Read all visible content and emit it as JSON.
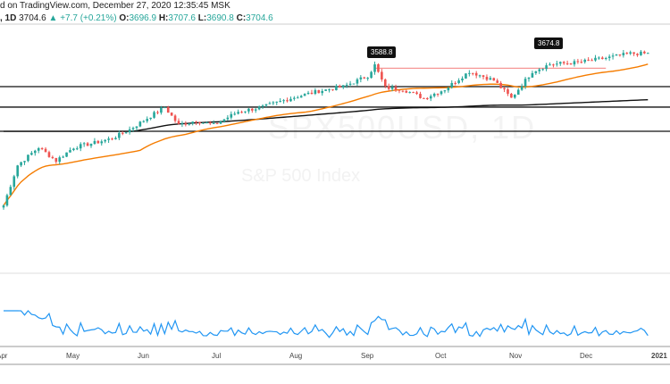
{
  "header": {
    "line1": "d on TradingView.com, December 27, 2020 12:35:45 MSK",
    "interval": ", 1D",
    "last": "3704.6",
    "change": "+7.7 (+0.21%)",
    "o_label": "O:",
    "o": "3696.9",
    "h_label": "H:",
    "h": "3707.6",
    "l_label": "L:",
    "l": "3690.8",
    "c_label": "C:",
    "c": "3704.6",
    "up_icon": "triangle-up-icon"
  },
  "watermark": {
    "symbol": "SPX500USD, 1D",
    "name": "S&P 500 Index"
  },
  "annotations": {
    "peak1": "3588.8",
    "peak2": "3674.8"
  },
  "x_axis": [
    "Apr",
    "May",
    "Jun",
    "Jul",
    "Aug",
    "Sep",
    "Oct",
    "Nov",
    "Dec",
    "2021"
  ],
  "colors": {
    "up": "#26a69a",
    "down": "#ef5350",
    "sma50": "#f57c00",
    "sma200": "#111111",
    "osc": "#2196f3",
    "resistance": "#ef5350"
  },
  "chart_data": {
    "type": "candlestick",
    "keypoints": [
      [
        0,
        2191
      ],
      [
        4,
        2592
      ],
      [
        10,
        2770
      ],
      [
        15,
        2637
      ],
      [
        20,
        2770
      ],
      [
        26,
        2815
      ],
      [
        31,
        2859
      ],
      [
        36,
        2948
      ],
      [
        42,
        3082
      ],
      [
        46,
        3171
      ],
      [
        50,
        2993
      ],
      [
        55,
        3037
      ],
      [
        60,
        2993
      ],
      [
        67,
        3126
      ],
      [
        74,
        3171
      ],
      [
        82,
        3260
      ],
      [
        90,
        3331
      ],
      [
        97,
        3375
      ],
      [
        104,
        3482
      ],
      [
        106,
        3589
      ],
      [
        109,
        3366
      ],
      [
        114,
        3349
      ],
      [
        120,
        3260
      ],
      [
        126,
        3349
      ],
      [
        133,
        3527
      ],
      [
        140,
        3438
      ],
      [
        145,
        3260
      ],
      [
        147,
        3349
      ],
      [
        151,
        3527
      ],
      [
        156,
        3598
      ],
      [
        164,
        3616
      ],
      [
        172,
        3660
      ],
      [
        179,
        3705
      ],
      [
        184,
        3705
      ]
    ],
    "hlines": [
      3375,
      3171,
      2930
    ],
    "resistance": 3560
  }
}
